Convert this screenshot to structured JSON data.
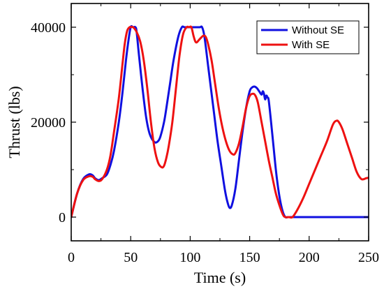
{
  "chart_data": {
    "type": "line",
    "title": "",
    "xlabel": "Time (s)",
    "ylabel": "Thrust (lbs)",
    "xlim": [
      0,
      250
    ],
    "ylim": [
      -5000,
      45000
    ],
    "xticks": [
      0,
      50,
      100,
      150,
      200,
      250
    ],
    "xtick_labels": [
      "0",
      "50",
      "100",
      "150",
      "200",
      "250"
    ],
    "yticks": [
      0,
      20000,
      40000
    ],
    "ytick_labels": [
      "0",
      "20000",
      "40000"
    ],
    "grid": false,
    "legend_position": "top-right",
    "series": [
      {
        "name": "Without SE",
        "color": "#1010e0",
        "x": [
          0,
          5,
          10,
          15,
          18,
          20,
          23,
          26,
          30,
          33,
          36,
          40,
          43,
          46,
          48,
          50,
          52,
          54,
          55,
          57,
          60,
          63,
          66,
          70,
          73,
          75,
          78,
          80,
          83,
          86,
          90,
          93,
          95,
          96,
          100,
          103,
          108,
          110,
          112,
          115,
          118,
          120,
          123,
          126,
          129,
          131,
          133,
          135,
          138,
          141,
          144,
          147,
          150,
          152,
          154,
          156,
          158,
          160,
          161,
          162,
          163,
          164,
          165,
          166,
          168,
          170,
          172,
          174,
          176,
          178,
          180,
          182,
          185,
          190,
          200,
          210,
          220,
          230,
          240,
          250
        ],
        "y": [
          0,
          5000,
          8000,
          9000,
          8800,
          8200,
          7800,
          8200,
          9000,
          11000,
          14000,
          20000,
          26000,
          33000,
          37000,
          40000,
          40000,
          40000,
          39000,
          34000,
          27000,
          21000,
          17500,
          15800,
          16000,
          17000,
          20000,
          23000,
          28000,
          33000,
          38000,
          40000,
          40000,
          40000,
          40000,
          40000,
          40000,
          40000,
          38000,
          32000,
          26000,
          22000,
          16000,
          11000,
          6000,
          3500,
          2000,
          2500,
          6000,
          12000,
          18000,
          23000,
          26500,
          27300,
          27500,
          27200,
          26500,
          25800,
          26500,
          26000,
          24800,
          25600,
          25200,
          24600,
          20000,
          15000,
          10000,
          6000,
          3000,
          1000,
          0,
          0,
          0,
          0,
          0,
          0,
          0,
          0,
          0,
          0
        ]
      },
      {
        "name": "With SE",
        "color": "#ee1111",
        "x": [
          0,
          5,
          10,
          15,
          18,
          20,
          23,
          26,
          30,
          33,
          36,
          40,
          43,
          45,
          47,
          49,
          50,
          52,
          55,
          58,
          61,
          64,
          67,
          70,
          73,
          76,
          78,
          80,
          82,
          85,
          88,
          91,
          94,
          97,
          99,
          101,
          103,
          105,
          108,
          111,
          113,
          115,
          118,
          121,
          124,
          127,
          130,
          133,
          136,
          138,
          141,
          144,
          147,
          150,
          153,
          155,
          157,
          160,
          163,
          166,
          169,
          172,
          175,
          178,
          180,
          183,
          186,
          190,
          195,
          200,
          205,
          210,
          215,
          220,
          223,
          225,
          228,
          232,
          236,
          240,
          244,
          248,
          250
        ],
        "y": [
          0,
          5000,
          7800,
          8600,
          8500,
          8000,
          7600,
          8000,
          10000,
          13000,
          18000,
          25000,
          32000,
          36500,
          39200,
          40000,
          40000,
          40000,
          39000,
          37000,
          33000,
          27000,
          20000,
          14500,
          11500,
          10500,
          10800,
          12500,
          15000,
          20000,
          27000,
          34000,
          38500,
          40000,
          40000,
          40000,
          38000,
          36800,
          37500,
          38200,
          38000,
          36500,
          33000,
          28000,
          23000,
          19000,
          16000,
          14000,
          13200,
          13500,
          15500,
          19000,
          23000,
          25500,
          26000,
          25500,
          24000,
          20000,
          16000,
          12000,
          8500,
          5000,
          2500,
          500,
          0,
          0,
          0,
          1500,
          4000,
          7000,
          10000,
          13000,
          16000,
          19500,
          20300,
          20000,
          18500,
          15500,
          12500,
          9500,
          8000,
          8200,
          8300
        ]
      }
    ]
  }
}
